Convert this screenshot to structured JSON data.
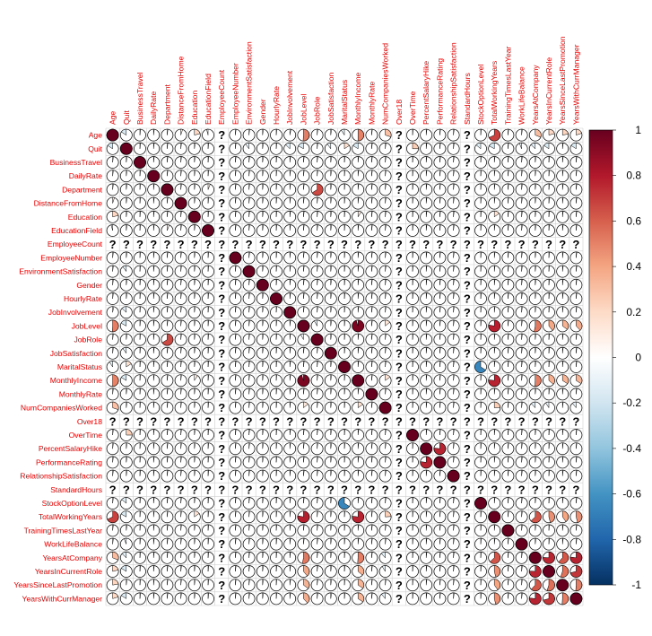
{
  "chart_data": {
    "type": "heatmap",
    "style": "corrplot-pie",
    "variables": [
      "Age",
      "Quit",
      "BusinessTravel",
      "DailyRate",
      "Department",
      "DistanceFromHome",
      "Education",
      "EducationField",
      "EmployeeCount",
      "EmployeeNumber",
      "EnvironmentSatisfaction",
      "Gender",
      "HourlyRate",
      "JobInvolvement",
      "JobLevel",
      "JobRole",
      "JobSatisfaction",
      "MaritalStatus",
      "MonthlyIncome",
      "MonthlyRate",
      "NumCompaniesWorked",
      "Over18",
      "OverTime",
      "PercentSalaryHike",
      "PerformanceRating",
      "RelationshipSatisfaction",
      "StandardHours",
      "StockOptionLevel",
      "TotalWorkingYears",
      "TrainingTimesLastYear",
      "WorkLifeBalance",
      "YearsAtCompany",
      "YearsInCurrentRole",
      "YearsSinceLastPromotion",
      "YearsWithCurrManager"
    ],
    "undefined_variables": [
      "EmployeeCount",
      "Over18",
      "StandardHours"
    ],
    "missing_symbol": "?",
    "correlations": [
      {
        "a": "Age",
        "b": "Quit",
        "r": -0.16
      },
      {
        "a": "Age",
        "b": "DistanceFromHome",
        "r": 0.05
      },
      {
        "a": "Age",
        "b": "Education",
        "r": 0.21
      },
      {
        "a": "Age",
        "b": "EducationField",
        "r": -0.04
      },
      {
        "a": "Age",
        "b": "JobLevel",
        "r": 0.51
      },
      {
        "a": "Age",
        "b": "JobInvolvement",
        "r": 0.03
      },
      {
        "a": "Age",
        "b": "MaritalStatus",
        "r": -0.09
      },
      {
        "a": "Age",
        "b": "MonthlyIncome",
        "r": 0.5
      },
      {
        "a": "Age",
        "b": "NumCompaniesWorked",
        "r": 0.3
      },
      {
        "a": "Age",
        "b": "TotalWorkingYears",
        "r": 0.68
      },
      {
        "a": "Age",
        "b": "YearsAtCompany",
        "r": 0.31
      },
      {
        "a": "Age",
        "b": "YearsInCurrentRole",
        "r": 0.21
      },
      {
        "a": "Age",
        "b": "YearsSinceLastPromotion",
        "r": 0.22
      },
      {
        "a": "Age",
        "b": "YearsWithCurrManager",
        "r": 0.2
      },
      {
        "a": "Quit",
        "b": "EnvironmentSatisfaction",
        "r": -0.1
      },
      {
        "a": "Quit",
        "b": "JobInvolvement",
        "r": -0.13
      },
      {
        "a": "Quit",
        "b": "JobLevel",
        "r": -0.17
      },
      {
        "a": "Quit",
        "b": "JobSatisfaction",
        "r": -0.1
      },
      {
        "a": "Quit",
        "b": "MaritalStatus",
        "r": 0.16
      },
      {
        "a": "Quit",
        "b": "MonthlyIncome",
        "r": -0.16
      },
      {
        "a": "Quit",
        "b": "OverTime",
        "r": 0.25
      },
      {
        "a": "Quit",
        "b": "StockOptionLevel",
        "r": -0.14
      },
      {
        "a": "Quit",
        "b": "TotalWorkingYears",
        "r": -0.17
      },
      {
        "a": "Quit",
        "b": "WorkLifeBalance",
        "r": -0.06
      },
      {
        "a": "Quit",
        "b": "YearsAtCompany",
        "r": -0.13
      },
      {
        "a": "Quit",
        "b": "YearsInCurrentRole",
        "r": -0.16
      },
      {
        "a": "Quit",
        "b": "YearsWithCurrManager",
        "r": -0.16
      },
      {
        "a": "Department",
        "b": "JobRole",
        "r": 0.66
      },
      {
        "a": "Department",
        "b": "EducationField",
        "r": 0.06
      },
      {
        "a": "Education",
        "b": "TotalWorkingYears",
        "r": 0.15
      },
      {
        "a": "Education",
        "b": "MonthlyIncome",
        "r": 0.09
      },
      {
        "a": "JobLevel",
        "b": "MonthlyIncome",
        "r": 0.95
      },
      {
        "a": "JobLevel",
        "b": "TotalWorkingYears",
        "r": 0.78
      },
      {
        "a": "JobLevel",
        "b": "YearsAtCompany",
        "r": 0.53
      },
      {
        "a": "JobLevel",
        "b": "YearsInCurrentRole",
        "r": 0.39
      },
      {
        "a": "JobLevel",
        "b": "YearsSinceLastPromotion",
        "r": 0.35
      },
      {
        "a": "JobLevel",
        "b": "YearsWithCurrManager",
        "r": 0.38
      },
      {
        "a": "JobLevel",
        "b": "NumCompaniesWorked",
        "r": 0.14
      },
      {
        "a": "JobLevel",
        "b": "JobRole",
        "r": -0.08
      },
      {
        "a": "MaritalStatus",
        "b": "StockOptionLevel",
        "r": -0.66
      },
      {
        "a": "MonthlyIncome",
        "b": "TotalWorkingYears",
        "r": 0.77
      },
      {
        "a": "MonthlyIncome",
        "b": "YearsAtCompany",
        "r": 0.51
      },
      {
        "a": "MonthlyIncome",
        "b": "YearsInCurrentRole",
        "r": 0.36
      },
      {
        "a": "MonthlyIncome",
        "b": "YearsSinceLastPromotion",
        "r": 0.34
      },
      {
        "a": "MonthlyIncome",
        "b": "YearsWithCurrManager",
        "r": 0.34
      },
      {
        "a": "MonthlyIncome",
        "b": "NumCompaniesWorked",
        "r": 0.15
      },
      {
        "a": "NumCompaniesWorked",
        "b": "TotalWorkingYears",
        "r": 0.24
      },
      {
        "a": "NumCompaniesWorked",
        "b": "YearsAtCompany",
        "r": -0.12
      },
      {
        "a": "NumCompaniesWorked",
        "b": "YearsInCurrentRole",
        "r": -0.09
      },
      {
        "a": "NumCompaniesWorked",
        "b": "YearsWithCurrManager",
        "r": -0.11
      },
      {
        "a": "PercentSalaryHike",
        "b": "PerformanceRating",
        "r": 0.77
      },
      {
        "a": "TotalWorkingYears",
        "b": "YearsAtCompany",
        "r": 0.63
      },
      {
        "a": "TotalWorkingYears",
        "b": "YearsInCurrentRole",
        "r": 0.46
      },
      {
        "a": "TotalWorkingYears",
        "b": "YearsSinceLastPromotion",
        "r": 0.4
      },
      {
        "a": "TotalWorkingYears",
        "b": "YearsWithCurrManager",
        "r": 0.46
      },
      {
        "a": "YearsAtCompany",
        "b": "YearsInCurrentRole",
        "r": 0.76
      },
      {
        "a": "YearsAtCompany",
        "b": "YearsSinceLastPromotion",
        "r": 0.62
      },
      {
        "a": "YearsAtCompany",
        "b": "YearsWithCurrManager",
        "r": 0.77
      },
      {
        "a": "YearsInCurrentRole",
        "b": "YearsSinceLastPromotion",
        "r": 0.55
      },
      {
        "a": "YearsInCurrentRole",
        "b": "YearsWithCurrManager",
        "r": 0.71
      },
      {
        "a": "YearsSinceLastPromotion",
        "b": "YearsWithCurrManager",
        "r": 0.51
      }
    ],
    "default_small_r": 0.02,
    "colorbar": {
      "range": [
        -1,
        1
      ],
      "tick_labels": [
        "1",
        "0.8",
        "0.6",
        "0.4",
        "0.2",
        "0",
        "-0.2",
        "-0.4",
        "-0.6",
        "-0.8",
        "-1"
      ],
      "colors": [
        "#67001F",
        "#B2182B",
        "#D6604D",
        "#F4A582",
        "#FDDBC7",
        "#FFFFFF",
        "#D1E5F0",
        "#92C5DE",
        "#4393C3",
        "#2166AC",
        "#053061"
      ]
    }
  }
}
